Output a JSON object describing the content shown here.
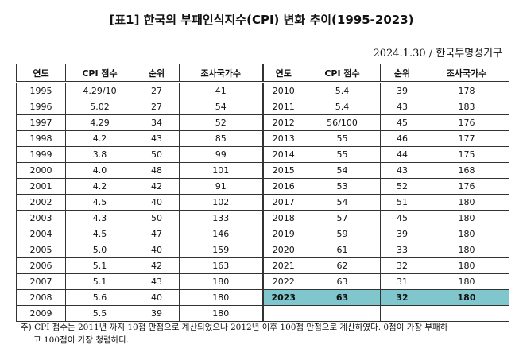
{
  "title": "[표1] 한국의 부패인식지수(CPI) 변화 추이(1995-2023)",
  "source": "2024.1.30 / 한국투명성기구",
  "table": {
    "headers": [
      "연도",
      "CPI 점수",
      "순위",
      "조사국가수"
    ],
    "left_rows": [
      [
        "1995",
        "4.29/10",
        "27",
        "41"
      ],
      [
        "1996",
        "5.02",
        "27",
        "54"
      ],
      [
        "1997",
        "4.29",
        "34",
        "52"
      ],
      [
        "1998",
        "4.2",
        "43",
        "85"
      ],
      [
        "1999",
        "3.8",
        "50",
        "99"
      ],
      [
        "2000",
        "4.0",
        "48",
        "101"
      ],
      [
        "2001",
        "4.2",
        "42",
        "91"
      ],
      [
        "2002",
        "4.5",
        "40",
        "102"
      ],
      [
        "2003",
        "4.3",
        "50",
        "133"
      ],
      [
        "2004",
        "4.5",
        "47",
        "146"
      ],
      [
        "2005",
        "5.0",
        "40",
        "159"
      ],
      [
        "2006",
        "5.1",
        "42",
        "163"
      ],
      [
        "2007",
        "5.1",
        "43",
        "180"
      ],
      [
        "2008",
        "5.6",
        "40",
        "180"
      ],
      [
        "2009",
        "5.5",
        "39",
        "180"
      ]
    ],
    "right_rows": [
      [
        "2010",
        "5.4",
        "39",
        "178"
      ],
      [
        "2011",
        "5.4",
        "43",
        "183"
      ],
      [
        "2012",
        "56/100",
        "45",
        "176"
      ],
      [
        "2013",
        "55",
        "46",
        "177"
      ],
      [
        "2014",
        "55",
        "44",
        "175"
      ],
      [
        "2015",
        "54",
        "43",
        "168"
      ],
      [
        "2016",
        "53",
        "52",
        "176"
      ],
      [
        "2017",
        "54",
        "51",
        "180"
      ],
      [
        "2018",
        "57",
        "45",
        "180"
      ],
      [
        "2019",
        "59",
        "39",
        "180"
      ],
      [
        "2020",
        "61",
        "33",
        "180"
      ],
      [
        "2021",
        "62",
        "32",
        "180"
      ],
      [
        "2022",
        "63",
        "31",
        "180"
      ],
      [
        "2023",
        "63",
        "32",
        "180"
      ]
    ]
  },
  "footnote": [
    "주) CPI 점수는 2011년 까지 10점 만점으로 계산되었으나 2012년 이후 100점 만점으로 계산하였다. 0점이 가장 부패하",
    "고 100점이 가장 청렴하다."
  ]
}
